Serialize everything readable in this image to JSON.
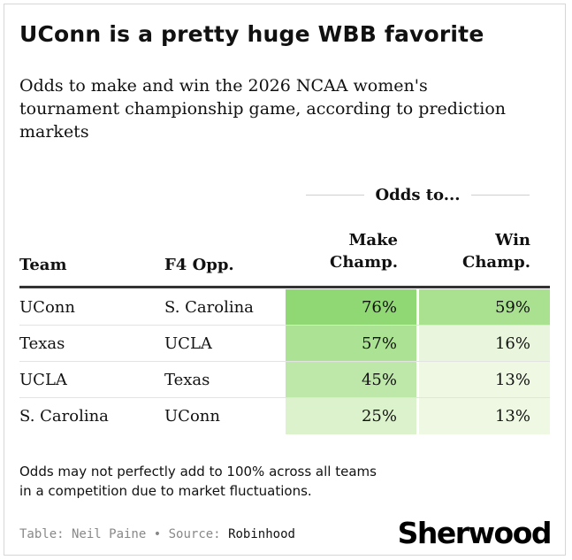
{
  "title": "UConn is a pretty huge WBB favorite",
  "subtitle": "Odds to make and win the 2026 NCAA women's tournament championship game, according to prediction markets",
  "table": {
    "group_header": "Odds to...",
    "columns": {
      "team": "Team",
      "opp": "F4 Opp.",
      "make_line1": "Make",
      "make_line2": "Champ.",
      "win_line1": "Win",
      "win_line2": "Champ."
    },
    "rows": [
      {
        "team": "UConn",
        "opp": "S. Carolina",
        "make": "76%",
        "win": "59%",
        "make_value": 76,
        "win_value": 59
      },
      {
        "team": "Texas",
        "opp": "UCLA",
        "make": "57%",
        "win": "16%",
        "make_value": 57,
        "win_value": 16
      },
      {
        "team": "UCLA",
        "opp": "Texas",
        "make": "45%",
        "win": "13%",
        "make_value": 45,
        "win_value": 13
      },
      {
        "team": "S. Carolina",
        "opp": "UConn",
        "make": "25%",
        "win": "13%",
        "make_value": 25,
        "win_value": 13
      }
    ],
    "heat_colors": {
      "low": "#eef8e2",
      "high": "#8fd873"
    }
  },
  "note": "Odds may not perfectly add to 100% across all teams in a competition due to market fluctuations.",
  "source": {
    "table_label": "Table: Neil Paine",
    "separator": "•",
    "source_label": "Source:",
    "source_name": "Robinhood"
  },
  "logo_text": "Sherwood"
}
